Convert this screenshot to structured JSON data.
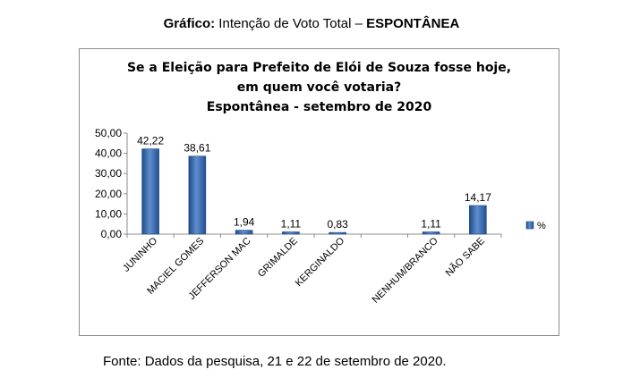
{
  "caption": {
    "prefix": "Gráfico:",
    "text": " Intenção de Voto Total  – ",
    "emphasis": "ESPONTÂNEA"
  },
  "source_note": "Fonte: Dados da pesquisa, 21 e 22 de setembro de 2020.",
  "chart_data": {
    "type": "bar",
    "title_lines": [
      "Se a Eleição para Prefeito de Elói de Souza fosse hoje,",
      "em quem você votaria?",
      "Espontânea -  setembro de 2020"
    ],
    "categories": [
      "JUNINHO",
      "MACIEL GOMES",
      "JEFFERSON MAC",
      "GRIMALDE",
      "KERGINALDO",
      "",
      "NENHUM/BRANCO",
      "NÃO SABE"
    ],
    "values": [
      42.22,
      38.61,
      1.94,
      1.11,
      0.83,
      null,
      1.11,
      14.17
    ],
    "value_labels": [
      "42,22",
      "38,61",
      "1,94",
      "1,11",
      "0,83",
      "",
      "1,11",
      "14,17"
    ],
    "y_ticks": [
      0,
      10,
      20,
      30,
      40,
      50
    ],
    "y_tick_labels": [
      "0,00",
      "10,00",
      "20,00",
      "30,00",
      "40,00",
      "50,00"
    ],
    "ylim": [
      0,
      50
    ],
    "legend": {
      "label": "%",
      "placement": "right"
    },
    "grid": false,
    "colors": {
      "bar": "#2f5d9e",
      "bar_light": "#5f8fd0",
      "axis": "#8c8c8c"
    }
  }
}
